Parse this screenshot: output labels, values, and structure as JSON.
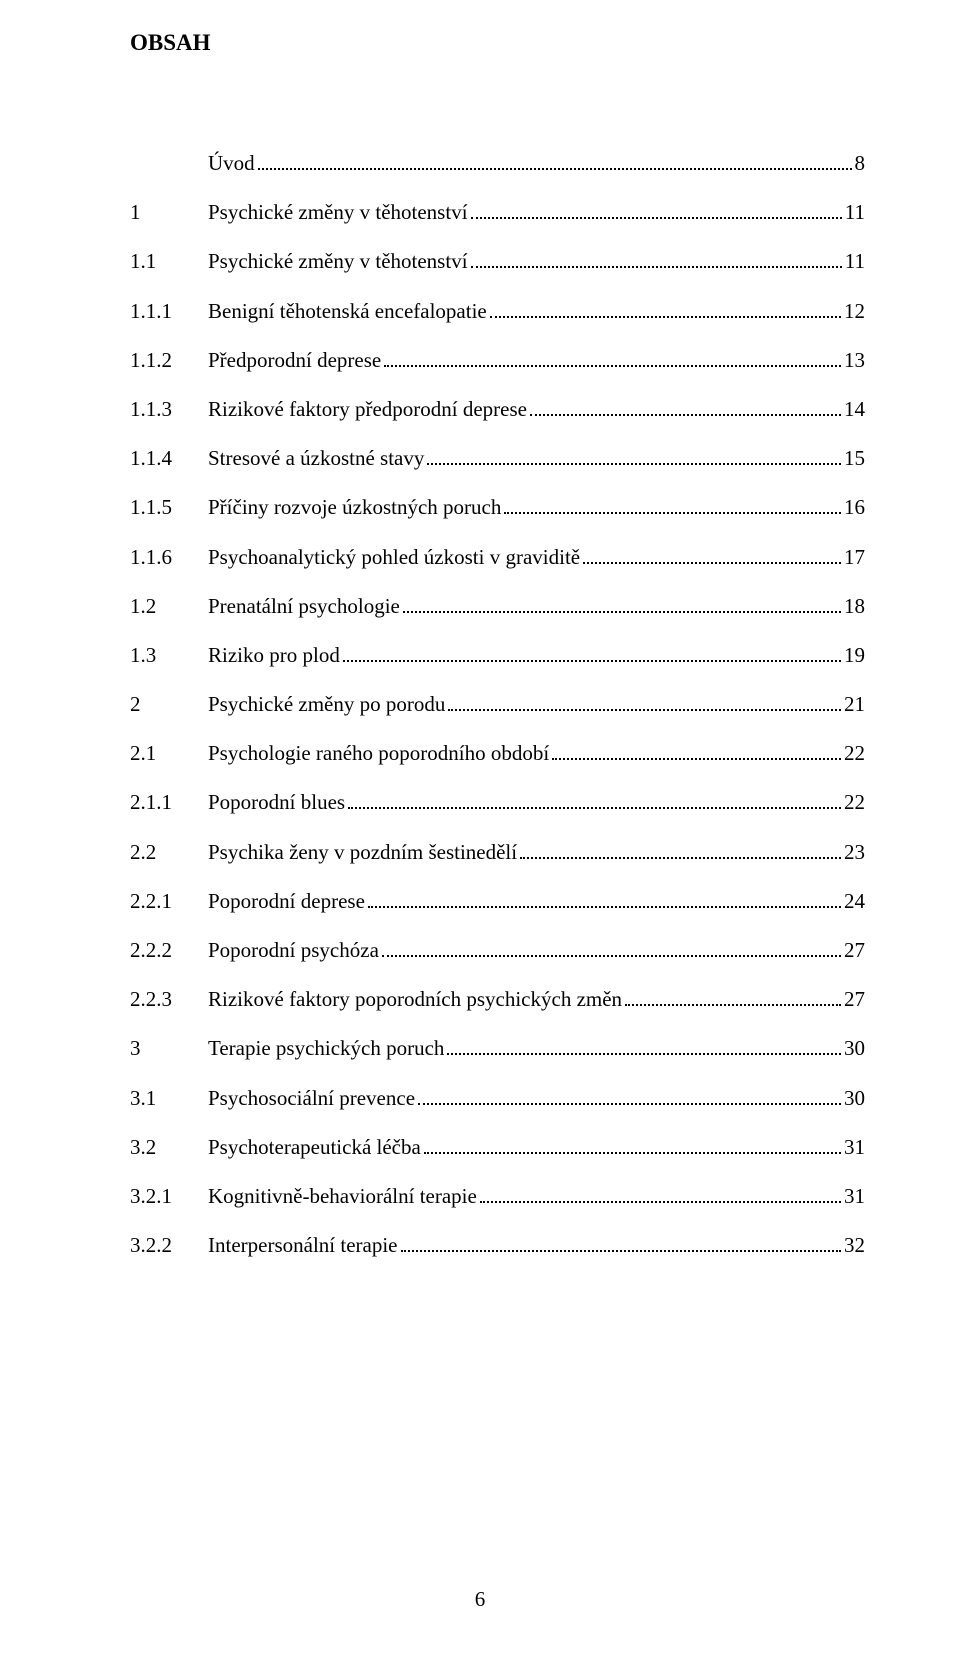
{
  "heading": "OBSAH",
  "page_number": "6",
  "text_color": "#000000",
  "background_color": "#ffffff",
  "font_family": "Times New Roman",
  "heading_fontsize": 23,
  "body_fontsize": 21,
  "entries": [
    {
      "num": "",
      "label": "Úvod",
      "page": "8",
      "level": 0
    },
    {
      "num": "1",
      "label": "Psychické změny v těhotenství",
      "page": "11",
      "level": 0
    },
    {
      "num": "1.1",
      "label": "Psychické změny v těhotenství",
      "page": " 11",
      "level": 1
    },
    {
      "num": "1.1.1",
      "label": "Benigní těhotenská encefalopatie",
      "page": " 12",
      "level": 2
    },
    {
      "num": "1.1.2",
      "label": "Předporodní deprese",
      "page": " 13",
      "level": 2
    },
    {
      "num": "1.1.3",
      "label": "Rizikové faktory předporodní deprese",
      "page": " 14",
      "level": 2
    },
    {
      "num": "1.1.4",
      "label": "Stresové a úzkostné stavy",
      "page": " 15",
      "level": 2
    },
    {
      "num": "1.1.5",
      "label": "Příčiny rozvoje úzkostných poruch",
      "page": " 16",
      "level": 2
    },
    {
      "num": "1.1.6",
      "label": "Psychoanalytický pohled úzkosti v graviditě",
      "page": " 17",
      "level": 2
    },
    {
      "num": "1.2",
      "label": "Prenatální psychologie",
      "page": " 18",
      "level": 1
    },
    {
      "num": "1.3",
      "label": "Riziko pro plod",
      "page": " 19",
      "level": 1
    },
    {
      "num": "2",
      "label": "Psychické změny po porodu",
      "page": "21",
      "level": 0
    },
    {
      "num": "2.1",
      "label": "Psychologie raného poporodního období",
      "page": " 22",
      "level": 1
    },
    {
      "num": "2.1.1",
      "label": "Poporodní blues",
      "page": " 22",
      "level": 2
    },
    {
      "num": "2.2",
      "label": "Psychika ženy v pozdním šestinedělí",
      "page": " 23",
      "level": 1
    },
    {
      "num": "2.2.1",
      "label": "Poporodní deprese",
      "page": " 24",
      "level": 2
    },
    {
      "num": "2.2.2",
      "label": "Poporodní psychóza",
      "page": " 27",
      "level": 2
    },
    {
      "num": "2.2.3",
      "label": "Rizikové faktory poporodních psychických změn",
      "page": " 27",
      "level": 2
    },
    {
      "num": "3",
      "label": "Terapie psychických poruch",
      "page": "30",
      "level": 0
    },
    {
      "num": "3.1",
      "label": "Psychosociální prevence",
      "page": " 30",
      "level": 1
    },
    {
      "num": "3.2",
      "label": "Psychoterapeutická léčba",
      "page": " 31",
      "level": 1
    },
    {
      "num": "3.2.1",
      "label": "Kognitivně-behaviorální terapie",
      "page": " 31",
      "level": 2
    },
    {
      "num": "3.2.2",
      "label": "Interpersonální terapie",
      "page": " 32",
      "level": 2
    }
  ]
}
